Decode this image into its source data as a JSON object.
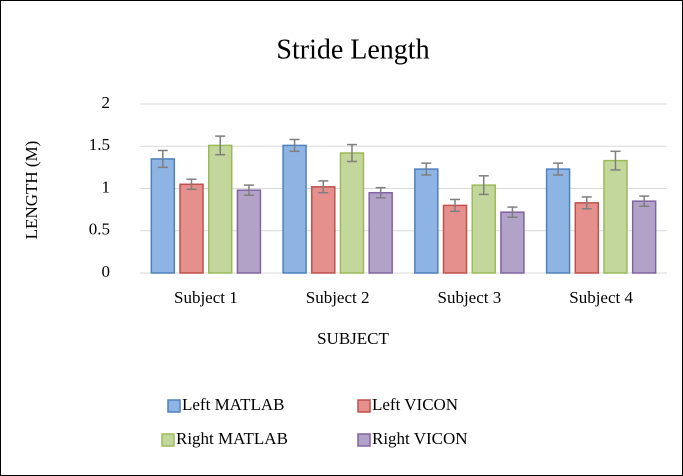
{
  "chart_data": {
    "type": "bar",
    "title": "Stride Length",
    "x_label": "SUBJECT",
    "y_label": "LENGTH (M)",
    "categories": [
      "Subject 1",
      "Subject 2",
      "Subject 3",
      "Subject 4"
    ],
    "series": [
      {
        "name": "Left MATLAB",
        "color": "#8eb4e3",
        "edge": "#4f81bd",
        "values": [
          1.35,
          1.51,
          1.23,
          1.23
        ],
        "errors": [
          0.1,
          0.07,
          0.07,
          0.07
        ]
      },
      {
        "name": "Left VICON",
        "color": "#e6908e",
        "edge": "#c0504d",
        "values": [
          1.05,
          1.02,
          0.8,
          0.83
        ],
        "errors": [
          0.06,
          0.07,
          0.07,
          0.07
        ]
      },
      {
        "name": "Right MATLAB",
        "color": "#c3d69b",
        "edge": "#9bbb59",
        "values": [
          1.51,
          1.42,
          1.04,
          1.33
        ],
        "errors": [
          0.11,
          0.1,
          0.11,
          0.11
        ]
      },
      {
        "name": "Right VICON",
        "color": "#b3a2c7",
        "edge": "#8064a2",
        "values": [
          0.98,
          0.95,
          0.72,
          0.85
        ],
        "errors": [
          0.06,
          0.06,
          0.06,
          0.06
        ]
      }
    ],
    "ylim": [
      0,
      2
    ],
    "yticks": [
      0,
      0.5,
      1,
      1.5,
      2
    ],
    "grid": true,
    "legend": "bottom"
  }
}
